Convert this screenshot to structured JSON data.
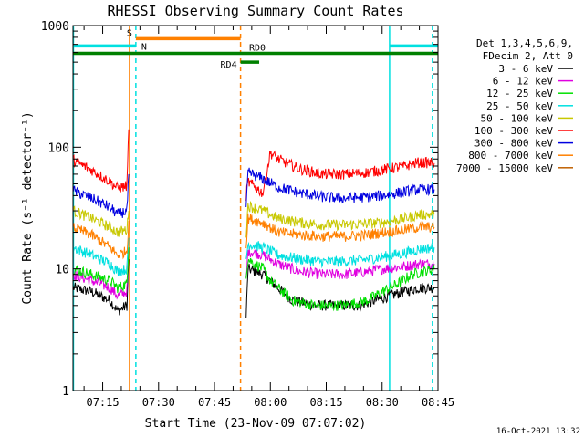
{
  "chart_data": {
    "type": "line",
    "title": "RHESSI Observing Summary Count Rates",
    "xlabel": "Start Time (23-Nov-09 07:07:02)",
    "ylabel": "Count Rate (s⁻¹ detector⁻¹)",
    "ylog": true,
    "xlim_minutes_after_07_00": [
      7.03,
      105.0
    ],
    "ylim": [
      1,
      1000
    ],
    "grid": false,
    "legend_position": "right",
    "timestamp": "16-Oct-2021 13:32",
    "x_ticks": [
      {
        "label": "07:15",
        "min": 15
      },
      {
        "label": "07:30",
        "min": 30
      },
      {
        "label": "07:45",
        "min": 45
      },
      {
        "label": "08:00",
        "min": 60
      },
      {
        "label": "08:15",
        "min": 75
      },
      {
        "label": "08:30",
        "min": 90
      },
      {
        "label": "08:45",
        "min": 105
      }
    ],
    "y_ticks": [
      {
        "label": "1",
        "v": 1
      },
      {
        "label": "10",
        "v": 10
      },
      {
        "label": "100",
        "v": 100
      },
      {
        "label": "1000",
        "v": 1000
      }
    ],
    "legend_header": [
      "Det 1,3,4,5,6,9,",
      "FDecim 2, Att 0"
    ],
    "series": [
      {
        "name": "3 - 6 keV",
        "color": "#000000",
        "segments": [
          [
            [
              7.1,
              7
            ],
            [
              12,
              6.5
            ],
            [
              17,
              5.5
            ],
            [
              19,
              4.5
            ],
            [
              21.5,
              5
            ],
            [
              22,
              12
            ]
          ],
          [
            [
              53.5,
              4
            ],
            [
              54,
              10
            ],
            [
              58,
              9
            ],
            [
              62,
              7
            ],
            [
              66,
              5.5
            ],
            [
              72,
              5
            ],
            [
              78,
              5
            ],
            [
              84,
              5
            ],
            [
              88,
              5.5
            ],
            [
              92,
              6
            ],
            [
              96,
              6.5
            ],
            [
              100,
              7
            ],
            [
              104,
              7
            ]
          ]
        ]
      },
      {
        "name": "6 - 12 keV",
        "color": "#e000e0",
        "segments": [
          [
            [
              7.1,
              9
            ],
            [
              12,
              8
            ],
            [
              17,
              7
            ],
            [
              19,
              6
            ],
            [
              21.5,
              6.5
            ],
            [
              22,
              14
            ]
          ],
          [
            [
              53.5,
              8
            ],
            [
              54,
              14
            ],
            [
              58,
              13
            ],
            [
              62,
              11
            ],
            [
              68,
              9.5
            ],
            [
              74,
              9
            ],
            [
              80,
              9
            ],
            [
              86,
              9.5
            ],
            [
              90,
              10
            ],
            [
              96,
              10.5
            ],
            [
              100,
              11
            ],
            [
              104,
              11
            ]
          ]
        ]
      },
      {
        "name": "12 - 25 keV",
        "color": "#00e000",
        "segments": [
          [
            [
              7.1,
              10
            ],
            [
              12,
              9
            ],
            [
              17,
              8
            ],
            [
              19,
              7
            ],
            [
              21.5,
              7.5
            ],
            [
              22,
              15
            ]
          ],
          [
            [
              53.5,
              9
            ],
            [
              54,
              12
            ],
            [
              58,
              10
            ],
            [
              60,
              8
            ],
            [
              62,
              7
            ],
            [
              66,
              5.5
            ],
            [
              72,
              5
            ],
            [
              80,
              5
            ],
            [
              86,
              5.5
            ],
            [
              90,
              6.5
            ],
            [
              94,
              7.5
            ],
            [
              98,
              9
            ],
            [
              104,
              10
            ]
          ]
        ]
      },
      {
        "name": "25 - 50 keV",
        "color": "#00e0e0",
        "segments": [
          [
            [
              7.1,
              15
            ],
            [
              12,
              13
            ],
            [
              17,
              11
            ],
            [
              19,
              9.5
            ],
            [
              21.5,
              10
            ],
            [
              22,
              18
            ]
          ],
          [
            [
              53.5,
              12
            ],
            [
              54,
              16
            ],
            [
              58,
              15
            ],
            [
              62,
              13
            ],
            [
              68,
              12
            ],
            [
              74,
              11.5
            ],
            [
              80,
              11.5
            ],
            [
              86,
              12
            ],
            [
              90,
              12.5
            ],
            [
              96,
              13.5
            ],
            [
              100,
              14.5
            ],
            [
              104,
              15
            ]
          ]
        ]
      },
      {
        "name": "50 - 100 keV",
        "color": "#c8c800",
        "segments": [
          [
            [
              7.1,
              30
            ],
            [
              12,
              26
            ],
            [
              17,
              22
            ],
            [
              19,
              20
            ],
            [
              21.5,
              21
            ],
            [
              22,
              30
            ]
          ],
          [
            [
              53.5,
              20
            ],
            [
              54,
              33
            ],
            [
              58,
              30
            ],
            [
              62,
              26
            ],
            [
              68,
              24
            ],
            [
              74,
              23
            ],
            [
              80,
              23
            ],
            [
              86,
              23.5
            ],
            [
              90,
              24
            ],
            [
              96,
              26
            ],
            [
              100,
              28
            ],
            [
              104,
              28
            ]
          ]
        ]
      },
      {
        "name": "100 - 300 keV",
        "color": "#ff0000",
        "segments": [
          [
            [
              7.1,
              78
            ],
            [
              12,
              65
            ],
            [
              17,
              52
            ],
            [
              19,
              46
            ],
            [
              21.5,
              48
            ],
            [
              22,
              140
            ]
          ],
          [
            [
              53.5,
              40
            ],
            [
              54,
              52
            ],
            [
              58,
              42
            ],
            [
              60,
              90
            ],
            [
              62,
              80
            ],
            [
              68,
              66
            ],
            [
              74,
              60
            ],
            [
              80,
              60
            ],
            [
              86,
              62
            ],
            [
              90,
              65
            ],
            [
              96,
              70
            ],
            [
              100,
              75
            ],
            [
              104,
              74
            ]
          ]
        ]
      },
      {
        "name": "300 - 800 keV",
        "color": "#0000e0",
        "segments": [
          [
            [
              7.1,
              44
            ],
            [
              12,
              38
            ],
            [
              17,
              32
            ],
            [
              19,
              28
            ],
            [
              21.5,
              30
            ],
            [
              22,
              60
            ]
          ],
          [
            [
              53.5,
              30
            ],
            [
              54,
              62
            ],
            [
              58,
              55
            ],
            [
              62,
              47
            ],
            [
              68,
              42
            ],
            [
              74,
              39
            ],
            [
              80,
              38
            ],
            [
              86,
              39
            ],
            [
              90,
              40
            ],
            [
              96,
              43
            ],
            [
              100,
              45
            ],
            [
              104,
              45
            ]
          ]
        ]
      },
      {
        "name": "800 - 7000 keV",
        "color": "#ff8000",
        "segments": [
          [
            [
              7.1,
              22
            ],
            [
              12,
              19
            ],
            [
              17,
              15
            ],
            [
              19,
              13
            ],
            [
              21.5,
              14
            ],
            [
              22,
              25
            ]
          ],
          [
            [
              53.5,
              15
            ],
            [
              54,
              26
            ],
            [
              58,
              24
            ],
            [
              62,
              20
            ],
            [
              68,
              19
            ],
            [
              74,
              18.5
            ],
            [
              80,
              18.5
            ],
            [
              86,
              19
            ],
            [
              90,
              20
            ],
            [
              96,
              21
            ],
            [
              100,
              22
            ],
            [
              104,
              22
            ]
          ]
        ]
      },
      {
        "name": "7000 - 15000 keV",
        "color": "#c06000",
        "segments": []
      }
    ],
    "vertical_lines": [
      {
        "min": 7.15,
        "color": "#00e0e0",
        "style": "solid"
      },
      {
        "min": 22.2,
        "color": "#ff8000",
        "style": "solid"
      },
      {
        "min": 23.9,
        "color": "#00e0e0",
        "style": "dashed"
      },
      {
        "min": 52.0,
        "color": "#ff8000",
        "style": "dashed"
      },
      {
        "min": 92.0,
        "color": "#00e0e0",
        "style": "solid"
      },
      {
        "min": 103.5,
        "color": "#00e0e0",
        "style": "dashed"
      }
    ],
    "flag_bars": [
      {
        "label": "S",
        "color": "#ff8000",
        "x0": 23.9,
        "x1": 52.0,
        "level": 780,
        "label_side": "left"
      },
      {
        "label": "N",
        "color": "#00e0e0",
        "x0": 7.15,
        "x1": 23.9,
        "level": 680,
        "label_side": "right"
      },
      {
        "label": "",
        "color": "#00e0e0",
        "x0": 92.0,
        "x1": 105.0,
        "level": 680,
        "label_side": "none"
      },
      {
        "label": "RD0",
        "color": "#008000",
        "x0": 7.15,
        "x1": 105.0,
        "level": 590,
        "label_side": "mid"
      },
      {
        "label": "RD4",
        "color": "#008000",
        "x0": 52.0,
        "x1": 57.0,
        "level": 500,
        "label_side": "left"
      }
    ]
  }
}
